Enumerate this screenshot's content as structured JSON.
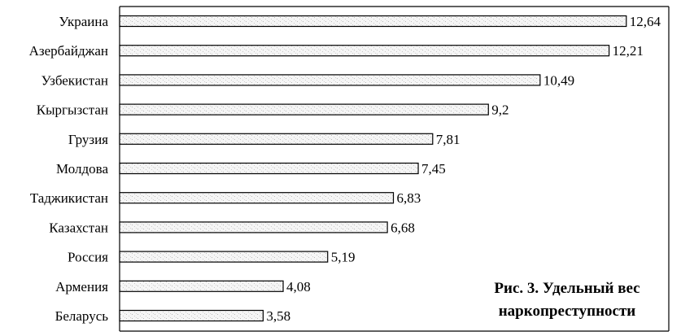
{
  "chart_data": {
    "type": "bar",
    "orientation": "horizontal",
    "categories": [
      "Украина",
      "Азербайджан",
      "Узбекистан",
      "Кыргызстан",
      "Грузия",
      "Молдова",
      "Таджикистан",
      "Казахстан",
      "Россия",
      "Армения",
      "Беларусь"
    ],
    "values": [
      12.64,
      12.21,
      10.49,
      9.2,
      7.81,
      7.45,
      6.83,
      6.68,
      5.19,
      4.08,
      3.58
    ],
    "value_labels": [
      "12,64",
      "12,21",
      "10,49",
      "9,2",
      "7,81",
      "7,45",
      "6,83",
      "6,68",
      "5,19",
      "4,08",
      "3,58"
    ],
    "title": "",
    "xlabel": "",
    "ylabel": "",
    "xlim": [
      0,
      13.7
    ],
    "grid": false,
    "legend": "none",
    "bar_fill": "#f4f4f4",
    "bar_stroke": "#000000"
  },
  "caption": {
    "line1": "Рис. 3. Удельный вес",
    "line2": "наркопреступности"
  }
}
